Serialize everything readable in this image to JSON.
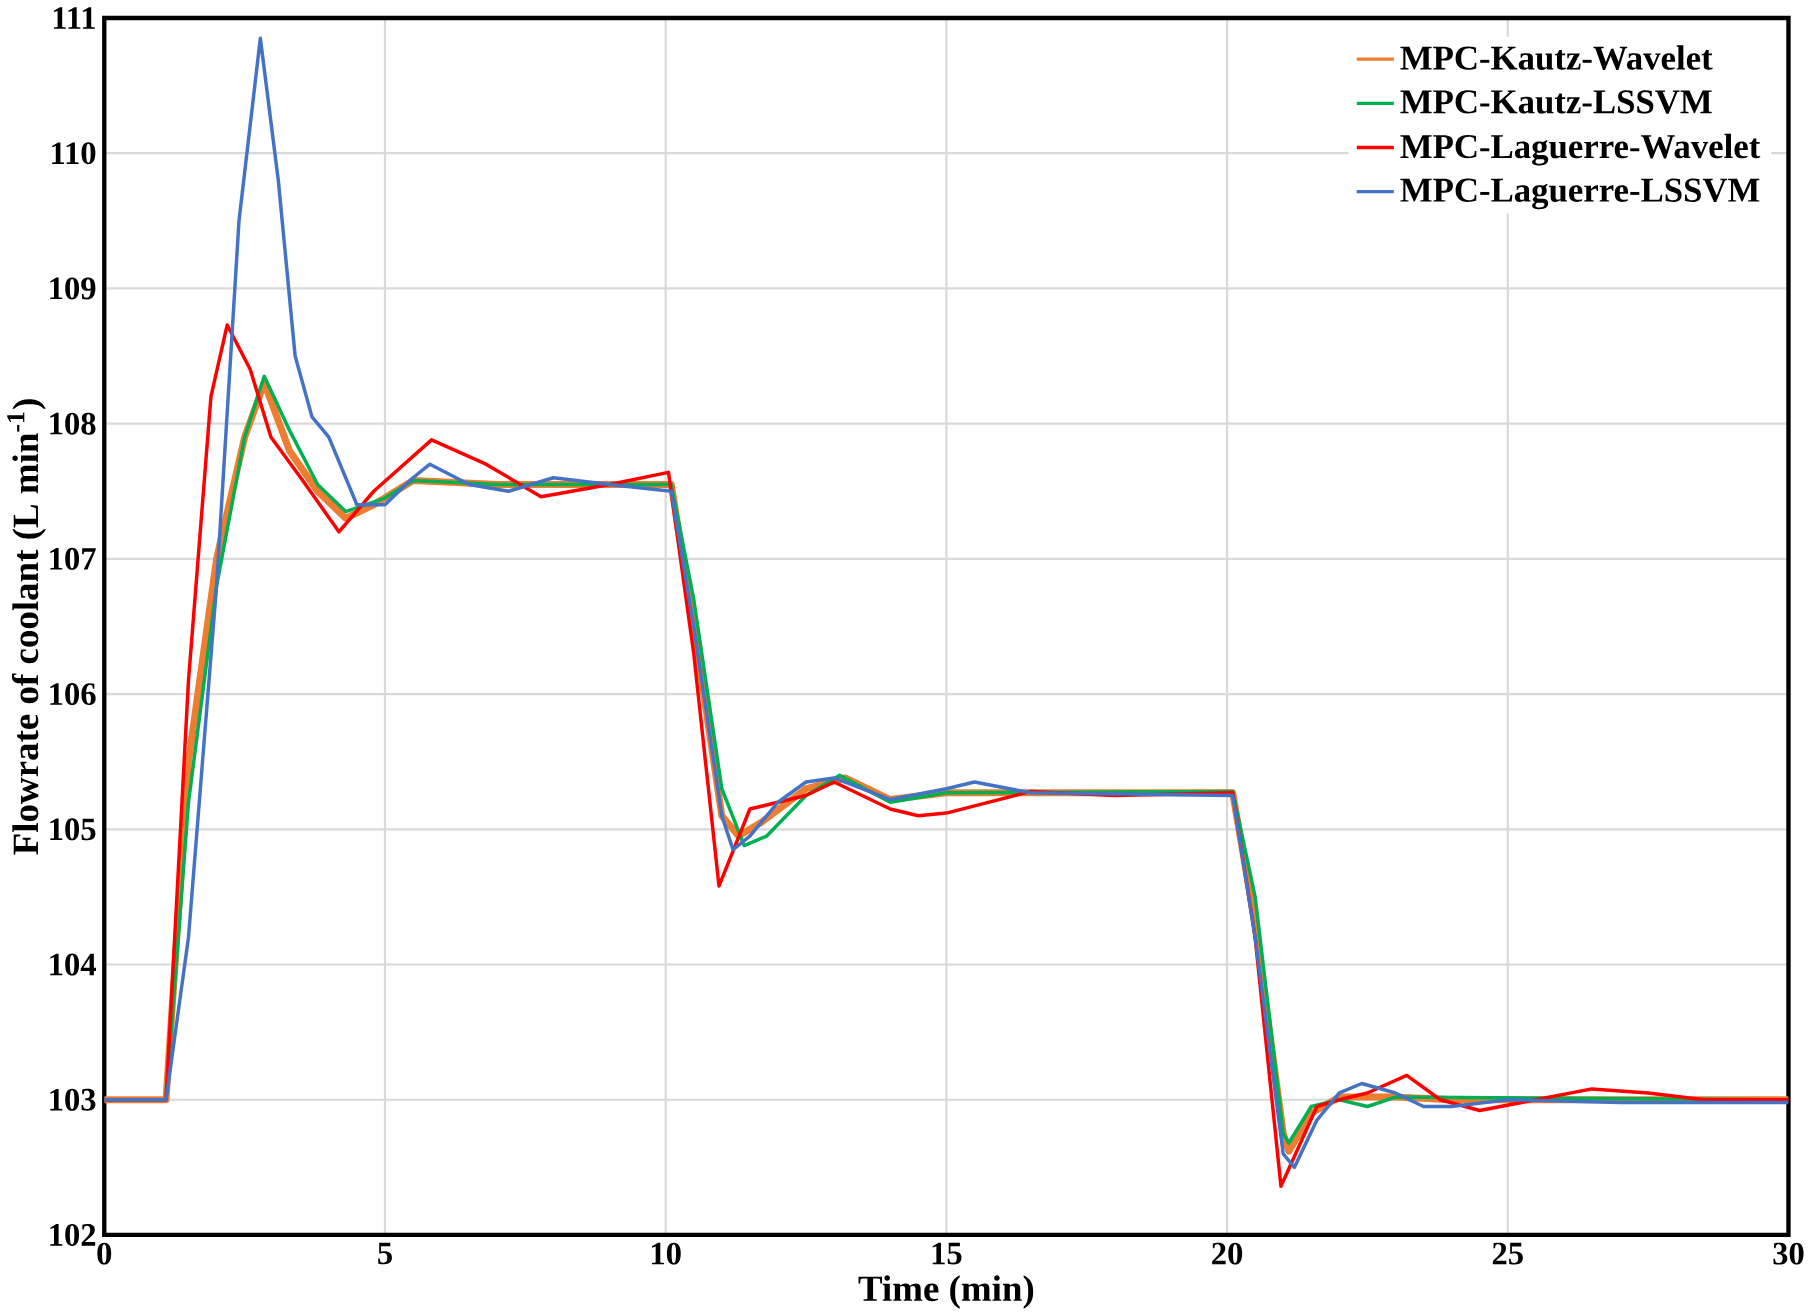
{
  "chart_data": {
    "type": "line",
    "xlabel": "Time (min)",
    "ylabel": "Flowrate of coolant (L min$^{-1}$)",
    "xlim": [
      0,
      30
    ],
    "ylim": [
      102,
      111
    ],
    "xticks": [
      0,
      5,
      10,
      15,
      20,
      25,
      30
    ],
    "yticks": [
      102,
      103,
      104,
      105,
      106,
      107,
      108,
      109,
      110,
      111
    ],
    "grid": true,
    "legend": "top right",
    "marker": "none",
    "line_style": "solid",
    "series": [
      {
        "name": "MPC-Kautz-Wavelet",
        "color": "#ed7d31",
        "x": [
          0,
          1.1,
          1.5,
          2.0,
          2.5,
          2.85,
          3.3,
          3.8,
          4.3,
          4.8,
          5.5,
          7,
          10.1,
          10.5,
          11.0,
          11.3,
          11.7,
          12.5,
          13.2,
          14,
          15,
          20.1,
          20.5,
          21.0,
          21.1,
          21.5,
          22,
          23,
          24,
          30
        ],
        "values": [
          103,
          103,
          105.5,
          107.0,
          107.9,
          108.3,
          107.8,
          107.5,
          107.3,
          107.4,
          107.58,
          107.55,
          107.55,
          106.5,
          105.1,
          104.95,
          105.05,
          105.3,
          105.38,
          105.22,
          105.27,
          105.27,
          104.3,
          102.75,
          102.62,
          102.9,
          103.02,
          103.02,
          103.0,
          103.0
        ]
      },
      {
        "name": "MPC-Kautz-LSSVM",
        "color": "#00b050",
        "x": [
          0,
          1.1,
          1.5,
          2.0,
          2.5,
          2.85,
          3.3,
          3.8,
          4.3,
          5,
          5.5,
          7,
          10.1,
          10.5,
          11.0,
          11.4,
          11.8,
          12.5,
          13.1,
          14,
          15,
          20.1,
          20.5,
          21.0,
          21.1,
          21.5,
          22,
          22.5,
          23,
          30
        ],
        "values": [
          103,
          103,
          105.2,
          106.8,
          107.9,
          108.35,
          107.95,
          107.55,
          107.35,
          107.45,
          107.58,
          107.55,
          107.55,
          106.7,
          105.3,
          104.88,
          104.95,
          105.25,
          105.4,
          105.2,
          105.27,
          105.28,
          104.5,
          102.75,
          102.68,
          102.95,
          103.0,
          102.95,
          103.02,
          103.0
        ]
      },
      {
        "name": "MPC-Laguerre-Wavelet",
        "color": "#ff0000",
        "x": [
          0,
          1.1,
          1.5,
          1.9,
          2.19,
          2.6,
          2.97,
          3.5,
          4.18,
          4.8,
          5.83,
          6.8,
          7.78,
          9,
          10.05,
          10.5,
          10.95,
          11.5,
          12.5,
          13,
          14,
          14.5,
          15,
          16.5,
          18,
          20.1,
          20.5,
          20.96,
          21.6,
          22,
          22.5,
          23.2,
          23.8,
          24.5,
          25.5,
          26.5,
          27.5,
          28.5,
          30
        ],
        "values": [
          103,
          103,
          106.1,
          108.2,
          108.73,
          108.4,
          107.9,
          107.6,
          107.2,
          107.5,
          107.88,
          107.7,
          107.46,
          107.55,
          107.64,
          106.3,
          104.58,
          105.15,
          105.25,
          105.35,
          105.15,
          105.1,
          105.12,
          105.28,
          105.25,
          105.27,
          104.2,
          102.36,
          102.95,
          103.0,
          103.05,
          103.18,
          103.0,
          102.92,
          103.0,
          103.08,
          103.05,
          103.0,
          103.0
        ]
      },
      {
        "name": "MPC-Laguerre-LSSVM",
        "color": "#4472c4",
        "x": [
          0,
          1.1,
          1.5,
          2.0,
          2.4,
          2.78,
          3.1,
          3.4,
          3.7,
          4.0,
          4.5,
          5.0,
          5.5,
          5.8,
          6.5,
          7.2,
          8.0,
          9,
          10.1,
          10.5,
          11.0,
          11.2,
          11.5,
          12.0,
          12.5,
          13,
          13.5,
          14,
          15,
          15.5,
          16.5,
          20.1,
          20.5,
          21.0,
          21.2,
          21.6,
          22.0,
          22.4,
          23,
          23.5,
          24,
          25,
          27,
          30
        ],
        "values": [
          103,
          103,
          104.2,
          106.8,
          109.5,
          110.85,
          109.8,
          108.5,
          108.05,
          107.9,
          107.4,
          107.4,
          107.6,
          107.7,
          107.55,
          107.5,
          107.6,
          107.55,
          107.5,
          106.5,
          105.1,
          104.85,
          104.95,
          105.2,
          105.35,
          105.38,
          105.3,
          105.22,
          105.3,
          105.35,
          105.27,
          105.25,
          104.2,
          102.6,
          102.5,
          102.85,
          103.05,
          103.12,
          103.05,
          102.95,
          102.95,
          103.0,
          102.98,
          102.98
        ]
      }
    ]
  }
}
